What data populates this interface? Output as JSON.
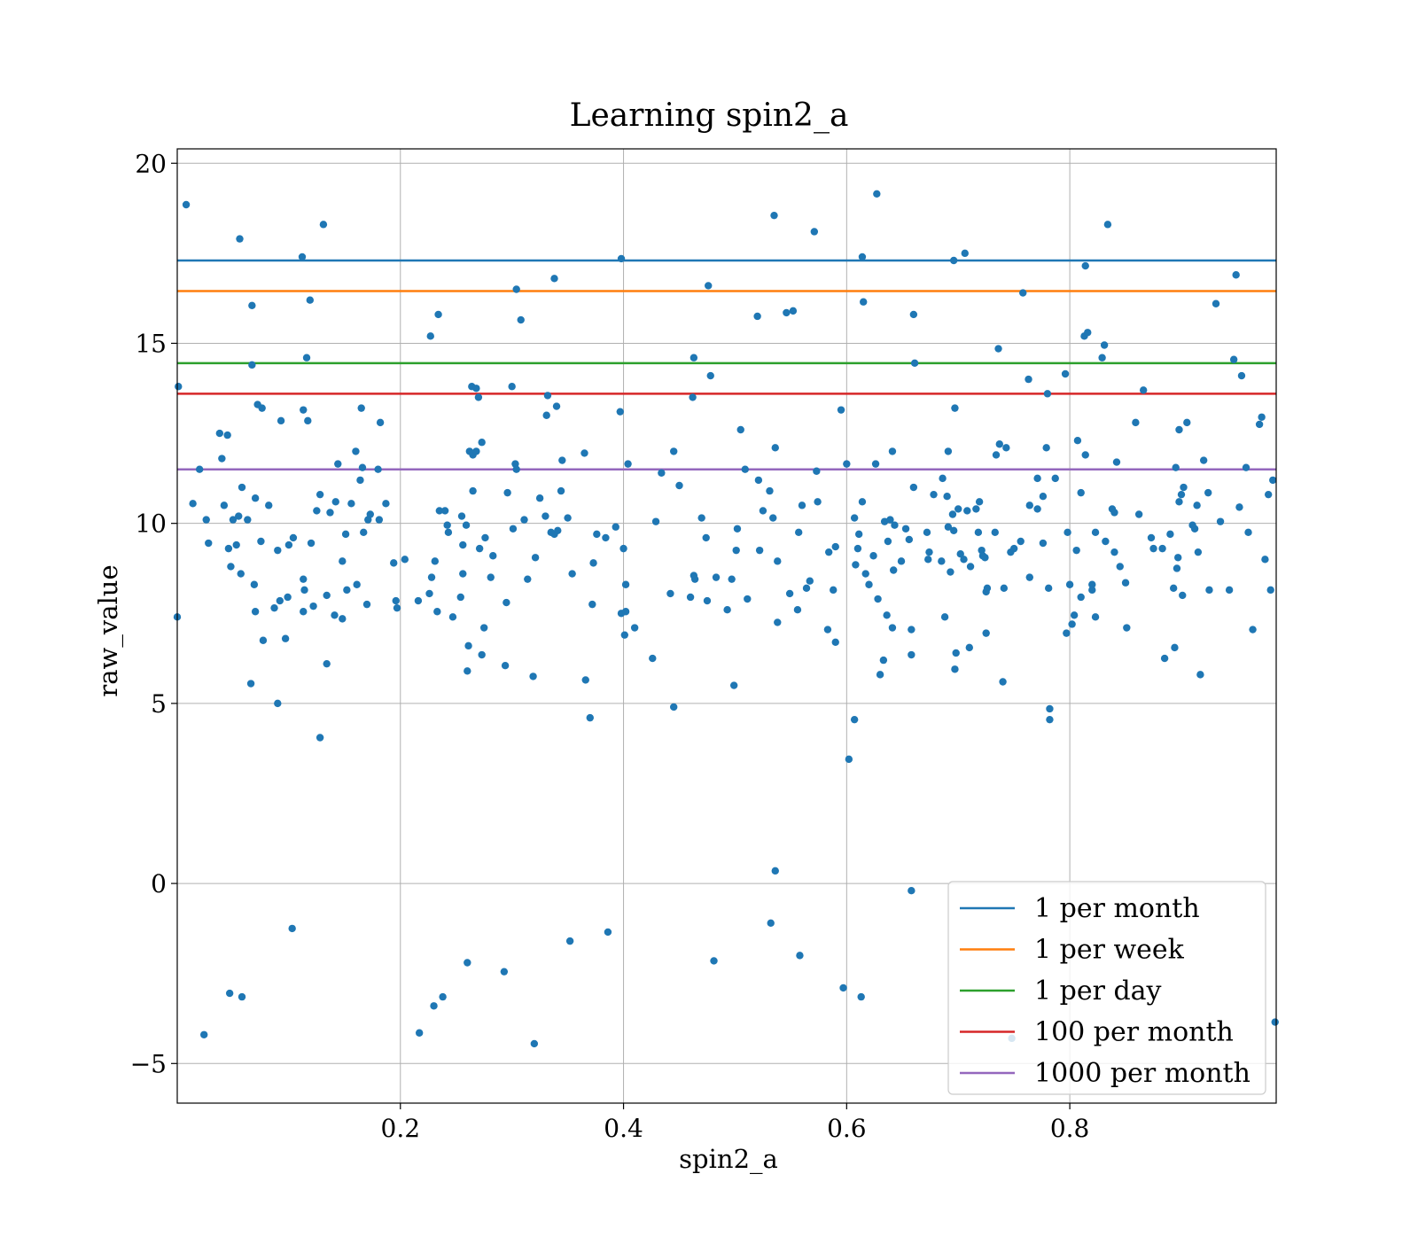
{
  "chart_data": {
    "type": "scatter",
    "title": "Learning spin2_a",
    "xlabel": "spin2_a",
    "ylabel": "raw_value",
    "xlim": [
      0.0,
      0.985
    ],
    "ylim": [
      -6.1,
      20.4
    ],
    "xticks": [
      0.2,
      0.4,
      0.6,
      0.8
    ],
    "xtick_labels": [
      "0.2",
      "0.4",
      "0.6",
      "0.8"
    ],
    "yticks": [
      -5,
      0,
      5,
      10,
      15,
      20
    ],
    "ytick_labels": [
      "−5",
      "0",
      "5",
      "10",
      "15",
      "20"
    ],
    "grid": true,
    "legend_position": "lower-right",
    "point_color": "#1f77b4",
    "hlines": [
      {
        "name": "1 per month",
        "y": 17.3,
        "color": "#1f77b4"
      },
      {
        "name": "1 per week",
        "y": 16.45,
        "color": "#ff7f0e"
      },
      {
        "name": "1 per day",
        "y": 14.45,
        "color": "#2ca02c"
      },
      {
        "name": "100 per month",
        "y": 13.6,
        "color": "#d62728"
      },
      {
        "name": "1000 per month",
        "y": 11.5,
        "color": "#9467bd"
      }
    ],
    "points": [
      [
        0.001,
        13.8
      ],
      [
        0.0,
        7.4
      ],
      [
        0.008,
        18.85
      ],
      [
        0.014,
        10.55
      ],
      [
        0.02,
        11.5
      ],
      [
        0.024,
        -4.2
      ],
      [
        0.026,
        10.1
      ],
      [
        0.028,
        9.45
      ],
      [
        0.038,
        12.5
      ],
      [
        0.04,
        11.8
      ],
      [
        0.042,
        10.5
      ],
      [
        0.045,
        12.45
      ],
      [
        0.046,
        9.3
      ],
      [
        0.047,
        -3.05
      ],
      [
        0.048,
        8.8
      ],
      [
        0.05,
        10.1
      ],
      [
        0.053,
        9.4
      ],
      [
        0.055,
        10.2
      ],
      [
        0.056,
        17.9
      ],
      [
        0.057,
        8.6
      ],
      [
        0.058,
        -3.15
      ],
      [
        0.058,
        11.0
      ],
      [
        0.063,
        10.1
      ],
      [
        0.066,
        5.55
      ],
      [
        0.067,
        16.05
      ],
      [
        0.067,
        14.4
      ],
      [
        0.069,
        8.3
      ],
      [
        0.07,
        7.55
      ],
      [
        0.07,
        10.7
      ],
      [
        0.072,
        13.3
      ],
      [
        0.075,
        9.5
      ],
      [
        0.076,
        13.2
      ],
      [
        0.077,
        6.75
      ],
      [
        0.082,
        10.5
      ],
      [
        0.087,
        7.65
      ],
      [
        0.09,
        9.25
      ],
      [
        0.09,
        5.0
      ],
      [
        0.092,
        7.85
      ],
      [
        0.093,
        12.85
      ],
      [
        0.097,
        6.8
      ],
      [
        0.099,
        7.95
      ],
      [
        0.1,
        9.4
      ],
      [
        0.103,
        -1.25
      ],
      [
        0.104,
        9.6
      ],
      [
        0.112,
        17.4
      ],
      [
        0.113,
        13.15
      ],
      [
        0.113,
        8.45
      ],
      [
        0.113,
        7.55
      ],
      [
        0.114,
        8.15
      ],
      [
        0.116,
        14.6
      ],
      [
        0.117,
        12.85
      ],
      [
        0.119,
        16.2
      ],
      [
        0.12,
        9.45
      ],
      [
        0.122,
        7.7
      ],
      [
        0.125,
        10.35
      ],
      [
        0.128,
        10.8
      ],
      [
        0.128,
        4.05
      ],
      [
        0.131,
        18.3
      ],
      [
        0.134,
        6.1
      ],
      [
        0.134,
        8.0
      ],
      [
        0.137,
        10.3
      ],
      [
        0.141,
        7.45
      ],
      [
        0.142,
        10.6
      ],
      [
        0.144,
        11.65
      ],
      [
        0.148,
        7.35
      ],
      [
        0.148,
        8.95
      ],
      [
        0.151,
        9.7
      ],
      [
        0.152,
        8.15
      ],
      [
        0.156,
        10.55
      ],
      [
        0.16,
        12.0
      ],
      [
        0.161,
        8.3
      ],
      [
        0.164,
        11.2
      ],
      [
        0.165,
        13.2
      ],
      [
        0.166,
        11.55
      ],
      [
        0.167,
        9.75
      ],
      [
        0.17,
        7.75
      ],
      [
        0.171,
        10.1
      ],
      [
        0.173,
        10.25
      ],
      [
        0.18,
        11.5
      ],
      [
        0.181,
        10.1
      ],
      [
        0.182,
        12.8
      ],
      [
        0.187,
        10.55
      ],
      [
        0.194,
        8.9
      ],
      [
        0.196,
        7.85
      ],
      [
        0.197,
        7.65
      ],
      [
        0.204,
        9.0
      ],
      [
        0.216,
        7.85
      ],
      [
        0.217,
        -4.15
      ],
      [
        0.226,
        8.05
      ],
      [
        0.227,
        15.2
      ],
      [
        0.228,
        8.5
      ],
      [
        0.23,
        -3.4
      ],
      [
        0.231,
        8.95
      ],
      [
        0.233,
        7.55
      ],
      [
        0.234,
        15.8
      ],
      [
        0.235,
        10.35
      ],
      [
        0.238,
        -3.15
      ],
      [
        0.24,
        10.35
      ],
      [
        0.242,
        9.95
      ],
      [
        0.243,
        9.75
      ],
      [
        0.247,
        7.4
      ],
      [
        0.254,
        7.95
      ],
      [
        0.255,
        10.2
      ],
      [
        0.256,
        8.6
      ],
      [
        0.256,
        9.4
      ],
      [
        0.259,
        9.95
      ],
      [
        0.26,
        -2.2
      ],
      [
        0.26,
        5.9
      ],
      [
        0.261,
        6.6
      ],
      [
        0.262,
        12.0
      ],
      [
        0.264,
        13.8
      ],
      [
        0.265,
        10.9
      ],
      [
        0.265,
        11.9
      ],
      [
        0.268,
        12.0
      ],
      [
        0.268,
        13.75
      ],
      [
        0.27,
        13.5
      ],
      [
        0.271,
        9.3
      ],
      [
        0.273,
        12.25
      ],
      [
        0.273,
        6.35
      ],
      [
        0.275,
        7.1
      ],
      [
        0.276,
        9.6
      ],
      [
        0.281,
        8.5
      ],
      [
        0.283,
        9.1
      ],
      [
        0.293,
        -2.45
      ],
      [
        0.294,
        6.05
      ],
      [
        0.295,
        7.8
      ],
      [
        0.296,
        10.85
      ],
      [
        0.3,
        13.8
      ],
      [
        0.301,
        9.85
      ],
      [
        0.303,
        11.65
      ],
      [
        0.304,
        11.5
      ],
      [
        0.304,
        16.5
      ],
      [
        0.308,
        15.65
      ],
      [
        0.311,
        10.1
      ],
      [
        0.314,
        8.45
      ],
      [
        0.319,
        5.75
      ],
      [
        0.32,
        -4.45
      ],
      [
        0.321,
        9.05
      ],
      [
        0.325,
        10.7
      ],
      [
        0.33,
        10.2
      ],
      [
        0.331,
        13.0
      ],
      [
        0.332,
        13.55
      ],
      [
        0.335,
        9.75
      ],
      [
        0.338,
        16.8
      ],
      [
        0.338,
        9.7
      ],
      [
        0.34,
        13.25
      ],
      [
        0.341,
        9.8
      ],
      [
        0.344,
        10.9
      ],
      [
        0.345,
        11.75
      ],
      [
        0.35,
        10.15
      ],
      [
        0.352,
        -1.6
      ],
      [
        0.354,
        8.6
      ],
      [
        0.365,
        11.95
      ],
      [
        0.366,
        5.65
      ],
      [
        0.37,
        4.6
      ],
      [
        0.372,
        7.75
      ],
      [
        0.373,
        8.9
      ],
      [
        0.376,
        9.7
      ],
      [
        0.384,
        9.6
      ],
      [
        0.386,
        -1.35
      ],
      [
        0.393,
        9.9
      ],
      [
        0.397,
        13.1
      ],
      [
        0.398,
        17.35
      ],
      [
        0.398,
        7.5
      ],
      [
        0.4,
        9.3
      ],
      [
        0.401,
        6.9
      ],
      [
        0.402,
        8.3
      ],
      [
        0.402,
        7.55
      ],
      [
        0.404,
        11.65
      ],
      [
        0.41,
        7.1
      ],
      [
        0.426,
        6.25
      ],
      [
        0.429,
        10.05
      ],
      [
        0.434,
        11.4
      ],
      [
        0.442,
        8.05
      ],
      [
        0.445,
        12.0
      ],
      [
        0.445,
        4.9
      ],
      [
        0.45,
        11.05
      ],
      [
        0.46,
        7.95
      ],
      [
        0.462,
        13.5
      ],
      [
        0.463,
        14.6
      ],
      [
        0.463,
        8.55
      ],
      [
        0.464,
        8.45
      ],
      [
        0.47,
        10.15
      ],
      [
        0.474,
        9.6
      ],
      [
        0.475,
        7.85
      ],
      [
        0.476,
        16.6
      ],
      [
        0.478,
        14.1
      ],
      [
        0.481,
        -2.15
      ],
      [
        0.483,
        8.5
      ],
      [
        0.493,
        7.6
      ],
      [
        0.497,
        8.45
      ],
      [
        0.499,
        5.5
      ],
      [
        0.501,
        9.25
      ],
      [
        0.502,
        9.85
      ],
      [
        0.505,
        12.6
      ],
      [
        0.509,
        11.5
      ],
      [
        0.511,
        7.9
      ],
      [
        0.52,
        15.75
      ],
      [
        0.521,
        11.2
      ],
      [
        0.522,
        9.25
      ],
      [
        0.525,
        10.35
      ],
      [
        0.531,
        10.9
      ],
      [
        0.532,
        -1.1
      ],
      [
        0.534,
        10.15
      ],
      [
        0.535,
        18.55
      ],
      [
        0.536,
        12.1
      ],
      [
        0.536,
        0.35
      ],
      [
        0.538,
        7.25
      ],
      [
        0.538,
        8.95
      ],
      [
        0.546,
        15.85
      ],
      [
        0.549,
        8.05
      ],
      [
        0.552,
        15.9
      ],
      [
        0.556,
        7.6
      ],
      [
        0.557,
        9.75
      ],
      [
        0.558,
        -2.0
      ],
      [
        0.56,
        10.5
      ],
      [
        0.564,
        8.2
      ],
      [
        0.567,
        8.4
      ],
      [
        0.571,
        18.1
      ],
      [
        0.573,
        11.45
      ],
      [
        0.574,
        10.6
      ],
      [
        0.583,
        7.05
      ],
      [
        0.584,
        9.2
      ],
      [
        0.588,
        8.15
      ],
      [
        0.59,
        6.7
      ],
      [
        0.59,
        9.35
      ],
      [
        0.595,
        13.15
      ],
      [
        0.597,
        -2.9
      ],
      [
        0.6,
        11.65
      ],
      [
        0.602,
        3.45
      ],
      [
        0.607,
        10.15
      ],
      [
        0.607,
        4.55
      ],
      [
        0.608,
        8.85
      ],
      [
        0.61,
        9.3
      ],
      [
        0.611,
        9.7
      ],
      [
        0.613,
        -3.15
      ],
      [
        0.614,
        17.4
      ],
      [
        0.614,
        10.6
      ],
      [
        0.615,
        16.15
      ],
      [
        0.617,
        8.6
      ],
      [
        0.62,
        8.3
      ],
      [
        0.624,
        9.1
      ],
      [
        0.626,
        11.65
      ],
      [
        0.627,
        19.15
      ],
      [
        0.628,
        7.9
      ],
      [
        0.63,
        5.8
      ],
      [
        0.633,
        6.2
      ],
      [
        0.634,
        10.05
      ],
      [
        0.636,
        7.45
      ],
      [
        0.637,
        9.5
      ],
      [
        0.639,
        10.1
      ],
      [
        0.641,
        7.1
      ],
      [
        0.641,
        12.0
      ],
      [
        0.642,
        8.7
      ],
      [
        0.643,
        9.95
      ],
      [
        0.649,
        8.95
      ],
      [
        0.653,
        9.85
      ],
      [
        0.656,
        9.55
      ],
      [
        0.658,
        7.05
      ],
      [
        0.658,
        6.35
      ],
      [
        0.658,
        -0.2
      ],
      [
        0.66,
        15.8
      ],
      [
        0.66,
        11.0
      ],
      [
        0.661,
        14.45
      ],
      [
        0.672,
        9.75
      ],
      [
        0.673,
        9.0
      ],
      [
        0.674,
        9.2
      ],
      [
        0.678,
        10.8
      ],
      [
        0.685,
        8.95
      ],
      [
        0.686,
        11.25
      ],
      [
        0.688,
        7.4
      ],
      [
        0.69,
        10.75
      ],
      [
        0.691,
        9.9
      ],
      [
        0.691,
        12.0
      ],
      [
        0.693,
        8.65
      ],
      [
        0.695,
        10.25
      ],
      [
        0.696,
        17.3
      ],
      [
        0.696,
        9.8
      ],
      [
        0.697,
        5.95
      ],
      [
        0.697,
        13.2
      ],
      [
        0.698,
        6.4
      ],
      [
        0.7,
        10.4
      ],
      [
        0.702,
        9.15
      ],
      [
        0.705,
        9.0
      ],
      [
        0.706,
        17.5
      ],
      [
        0.708,
        10.35
      ],
      [
        0.71,
        6.55
      ],
      [
        0.711,
        8.8
      ],
      [
        0.716,
        10.4
      ],
      [
        0.718,
        9.75
      ],
      [
        0.719,
        10.6
      ],
      [
        0.721,
        9.25
      ],
      [
        0.722,
        9.1
      ],
      [
        0.724,
        9.05
      ],
      [
        0.725,
        8.1
      ],
      [
        0.725,
        6.95
      ],
      [
        0.726,
        8.2
      ],
      [
        0.733,
        9.75
      ],
      [
        0.734,
        11.9
      ],
      [
        0.736,
        14.85
      ],
      [
        0.737,
        12.2
      ],
      [
        0.74,
        5.6
      ],
      [
        0.741,
        8.2
      ],
      [
        0.743,
        12.1
      ],
      [
        0.747,
        9.2
      ],
      [
        0.748,
        -4.3
      ],
      [
        0.75,
        9.3
      ],
      [
        0.756,
        9.5
      ],
      [
        0.758,
        16.4
      ],
      [
        0.763,
        14.0
      ],
      [
        0.764,
        8.5
      ],
      [
        0.764,
        10.5
      ],
      [
        0.771,
        10.4
      ],
      [
        0.771,
        11.25
      ],
      [
        0.776,
        10.75
      ],
      [
        0.776,
        9.45
      ],
      [
        0.779,
        12.1
      ],
      [
        0.78,
        13.6
      ],
      [
        0.781,
        8.2
      ],
      [
        0.782,
        4.85
      ],
      [
        0.782,
        4.55
      ],
      [
        0.787,
        11.25
      ],
      [
        0.796,
        14.15
      ],
      [
        0.797,
        6.95
      ],
      [
        0.798,
        9.75
      ],
      [
        0.8,
        8.3
      ],
      [
        0.802,
        7.2
      ],
      [
        0.804,
        7.45
      ],
      [
        0.806,
        9.25
      ],
      [
        0.807,
        12.3
      ],
      [
        0.81,
        7.95
      ],
      [
        0.81,
        10.85
      ],
      [
        0.813,
        15.2
      ],
      [
        0.814,
        11.9
      ],
      [
        0.814,
        17.15
      ],
      [
        0.816,
        15.3
      ],
      [
        0.82,
        8.3
      ],
      [
        0.82,
        8.15
      ],
      [
        0.823,
        9.75
      ],
      [
        0.823,
        7.4
      ],
      [
        0.829,
        14.6
      ],
      [
        0.831,
        14.95
      ],
      [
        0.832,
        9.5
      ],
      [
        0.834,
        18.3
      ],
      [
        0.838,
        10.4
      ],
      [
        0.84,
        10.3
      ],
      [
        0.84,
        9.2
      ],
      [
        0.842,
        11.7
      ],
      [
        0.845,
        8.8
      ],
      [
        0.85,
        8.35
      ],
      [
        0.851,
        7.1
      ],
      [
        0.859,
        12.8
      ],
      [
        0.862,
        10.25
      ],
      [
        0.866,
        13.7
      ],
      [
        0.873,
        9.6
      ],
      [
        0.875,
        9.3
      ],
      [
        0.883,
        9.3
      ],
      [
        0.885,
        6.25
      ],
      [
        0.89,
        9.7
      ],
      [
        0.893,
        8.2
      ],
      [
        0.894,
        6.55
      ],
      [
        0.895,
        11.55
      ],
      [
        0.896,
        8.75
      ],
      [
        0.897,
        9.05
      ],
      [
        0.898,
        12.6
      ],
      [
        0.898,
        10.6
      ],
      [
        0.9,
        10.8
      ],
      [
        0.901,
        8.0
      ],
      [
        0.902,
        11.0
      ],
      [
        0.905,
        12.8
      ],
      [
        0.91,
        9.95
      ],
      [
        0.912,
        9.85
      ],
      [
        0.914,
        10.5
      ],
      [
        0.915,
        9.2
      ],
      [
        0.917,
        5.8
      ],
      [
        0.92,
        11.75
      ],
      [
        0.924,
        10.85
      ],
      [
        0.925,
        8.15
      ],
      [
        0.931,
        16.1
      ],
      [
        0.935,
        10.05
      ],
      [
        0.943,
        8.15
      ],
      [
        0.947,
        14.55
      ],
      [
        0.949,
        16.9
      ],
      [
        0.952,
        10.45
      ],
      [
        0.954,
        14.1
      ],
      [
        0.958,
        11.55
      ],
      [
        0.96,
        9.75
      ],
      [
        0.964,
        7.05
      ],
      [
        0.97,
        12.75
      ],
      [
        0.972,
        12.95
      ],
      [
        0.975,
        9.0
      ],
      [
        0.978,
        10.8
      ],
      [
        0.98,
        8.15
      ],
      [
        0.982,
        11.2
      ],
      [
        0.984,
        -3.85
      ]
    ]
  }
}
